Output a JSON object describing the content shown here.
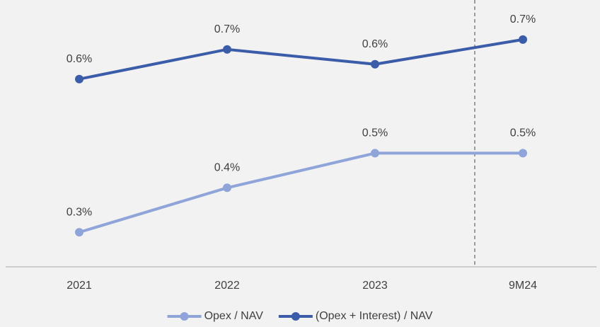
{
  "chart_data": {
    "type": "line",
    "categories": [
      "2021",
      "2022",
      "2023",
      "9M24"
    ],
    "series": [
      {
        "name": "Opex / NAV",
        "color": "#8fa4d8",
        "values": [
          0.3,
          0.39,
          0.46,
          0.46
        ],
        "value_labels": [
          "0.3%",
          "0.4%",
          "0.5%",
          "0.5%"
        ]
      },
      {
        "name": "(Opex + Interest) / NAV",
        "color": "#3b5ca8",
        "values": [
          0.61,
          0.67,
          0.64,
          0.69
        ],
        "value_labels": [
          "0.6%",
          "0.7%",
          "0.6%",
          "0.7%"
        ]
      }
    ],
    "ylim": [
      0.23,
      0.77
    ],
    "legend": "bottom"
  }
}
